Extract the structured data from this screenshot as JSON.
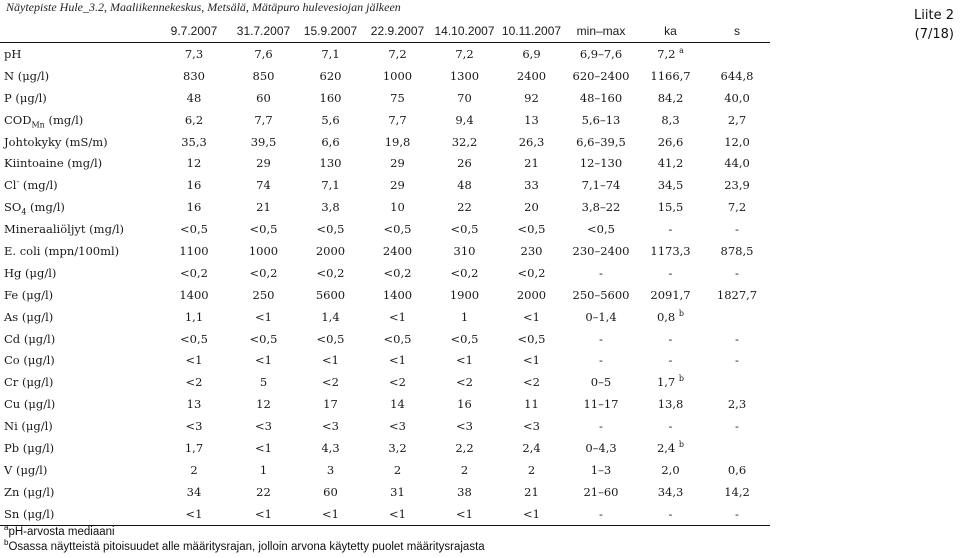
{
  "caption": "Näytepiste Hule_3.2, Maaliikennekeskus, Metsälä, Mätäpuro hulevesiojan jälkeen",
  "attachment": {
    "label": "Liite 2",
    "page": "(7/18)"
  },
  "columns": [
    "",
    "9.7.2007",
    "31.7.2007",
    "15.9.2007",
    "22.9.2007",
    "14.10.2007",
    "10.11.2007",
    "min–max",
    "ka",
    "s"
  ],
  "rows": [
    {
      "name": "pH",
      "sub": "",
      "sup": "",
      "unit": "",
      "values": [
        "7,3",
        "7,6",
        "7,1",
        "7,2",
        "7,2",
        "6,9",
        "6,9–7,6"
      ],
      "ka": "7,2",
      "ka_mark": "a",
      "s": ""
    },
    {
      "name": "N",
      "sub": "",
      "sup": "",
      "unit": " (μg/l)",
      "values": [
        "830",
        "850",
        "620",
        "1000",
        "1300",
        "2400",
        "620–2400"
      ],
      "ka": "1166,7",
      "ka_mark": "",
      "s": "644,8"
    },
    {
      "name": "P",
      "sub": "",
      "sup": "",
      "unit": " (μg/l)",
      "values": [
        "48",
        "60",
        "160",
        "75",
        "70",
        "92",
        "48–160"
      ],
      "ka": "84,2",
      "ka_mark": "",
      "s": "40,0"
    },
    {
      "name": "COD",
      "sub": "Mn",
      "sup": "",
      "unit": " (mg/l)",
      "values": [
        "6,2",
        "7,7",
        "5,6",
        "7,7",
        "9,4",
        "13",
        "5,6–13"
      ],
      "ka": "8,3",
      "ka_mark": "",
      "s": "2,7"
    },
    {
      "name": "Johtokyky",
      "sub": "",
      "sup": "",
      "unit": " (mS/m)",
      "values": [
        "35,3",
        "39,5",
        "6,6",
        "19,8",
        "32,2",
        "26,3",
        "6,6–39,5"
      ],
      "ka": "26,6",
      "ka_mark": "",
      "s": "12,0"
    },
    {
      "name": "Kiintoaine",
      "sub": "",
      "sup": "",
      "unit": " (mg/l)",
      "values": [
        "12",
        "29",
        "130",
        "29",
        "26",
        "21",
        "12–130"
      ],
      "ka": "41,2",
      "ka_mark": "",
      "s": "44,0"
    },
    {
      "name": "Cl",
      "sub": "",
      "sup": "-",
      "unit": " (mg/l)",
      "values": [
        "16",
        "74",
        "7,1",
        "29",
        "48",
        "33",
        "7,1–74"
      ],
      "ka": "34,5",
      "ka_mark": "",
      "s": "23,9"
    },
    {
      "name": "SO",
      "sub": "4",
      "sup": "",
      "unit": " (mg/l)",
      "values": [
        "16",
        "21",
        "3,8",
        "10",
        "22",
        "20",
        "3,8–22"
      ],
      "ka": "15,5",
      "ka_mark": "",
      "s": "7,2"
    },
    {
      "name": "Mineraaliöljyt",
      "sub": "",
      "sup": "",
      "unit": " (mg/l)",
      "values": [
        "<0,5",
        "<0,5",
        "<0,5",
        "<0,5",
        "<0,5",
        "<0,5",
        "<0,5"
      ],
      "ka": "-",
      "ka_mark": "",
      "s": "-"
    },
    {
      "name": "E. coli",
      "sub": "",
      "sup": "",
      "unit": " (mpn/100ml)",
      "values": [
        "1100",
        "1000",
        "2000",
        "2400",
        "310",
        "230",
        "230–2400"
      ],
      "ka": "1173,3",
      "ka_mark": "",
      "s": "878,5"
    },
    {
      "name": "Hg",
      "sub": "",
      "sup": "",
      "unit": " (μg/l)",
      "values": [
        "<0,2",
        "<0,2",
        "<0,2",
        "<0,2",
        "<0,2",
        "<0,2",
        "-"
      ],
      "ka": "-",
      "ka_mark": "",
      "s": "-"
    },
    {
      "name": "Fe",
      "sub": "",
      "sup": "",
      "unit": " (μg/l)",
      "values": [
        "1400",
        "250",
        "5600",
        "1400",
        "1900",
        "2000",
        "250–5600"
      ],
      "ka": "2091,7",
      "ka_mark": "",
      "s": "1827,7"
    },
    {
      "name": "As",
      "sub": "",
      "sup": "",
      "unit": " (μg/l)",
      "values": [
        "1,1",
        "<1",
        "1,4",
        "<1",
        "1",
        "<1",
        "0–1,4"
      ],
      "ka": "0,8",
      "ka_mark": "b",
      "s": ""
    },
    {
      "name": "Cd",
      "sub": "",
      "sup": "",
      "unit": " (μg/l)",
      "values": [
        "<0,5",
        "<0,5",
        "<0,5",
        "<0,5",
        "<0,5",
        "<0,5",
        "-"
      ],
      "ka": "-",
      "ka_mark": "",
      "s": "-"
    },
    {
      "name": "Co",
      "sub": "",
      "sup": "",
      "unit": " (μg/l)",
      "values": [
        "<1",
        "<1",
        "<1",
        "<1",
        "<1",
        "<1",
        "-"
      ],
      "ka": "-",
      "ka_mark": "",
      "s": "-"
    },
    {
      "name": "Cr",
      "sub": "",
      "sup": "",
      "unit": " (μg/l)",
      "values": [
        "<2",
        "5",
        "<2",
        "<2",
        "<2",
        "<2",
        "0–5"
      ],
      "ka": "1,7",
      "ka_mark": "b",
      "s": ""
    },
    {
      "name": "Cu",
      "sub": "",
      "sup": "",
      "unit": " (μg/l)",
      "values": [
        "13",
        "12",
        "17",
        "14",
        "16",
        "11",
        "11–17"
      ],
      "ka": "13,8",
      "ka_mark": "",
      "s": "2,3"
    },
    {
      "name": "Ni",
      "sub": "",
      "sup": "",
      "unit": " (μg/l)",
      "values": [
        "<3",
        "<3",
        "<3",
        "<3",
        "<3",
        "<3",
        "-"
      ],
      "ka": "-",
      "ka_mark": "",
      "s": "-"
    },
    {
      "name": "Pb",
      "sub": "",
      "sup": "",
      "unit": " (μg/l)",
      "values": [
        "1,7",
        "<1",
        "4,3",
        "3,2",
        "2,2",
        "2,4",
        "0–4,3"
      ],
      "ka": "2,4",
      "ka_mark": "b",
      "s": ""
    },
    {
      "name": "V",
      "sub": "",
      "sup": "",
      "unit": " (μg/l)",
      "values": [
        "2",
        "1",
        "3",
        "2",
        "2",
        "2",
        "1–3"
      ],
      "ka": "2,0",
      "ka_mark": "",
      "s": "0,6"
    },
    {
      "name": "Zn",
      "sub": "",
      "sup": "",
      "unit": " (μg/l)",
      "values": [
        "34",
        "22",
        "60",
        "31",
        "38",
        "21",
        "21–60"
      ],
      "ka": "34,3",
      "ka_mark": "",
      "s": "14,2"
    },
    {
      "name": "Sn",
      "sub": "",
      "sup": "",
      "unit": " (μg/l)",
      "values": [
        "<1",
        "<1",
        "<1",
        "<1",
        "<1",
        "<1",
        "-"
      ],
      "ka": "-",
      "ka_mark": "",
      "s": "-"
    }
  ],
  "footnotes": [
    {
      "mark": "a",
      "text": "pH-arvosta mediaani"
    },
    {
      "mark": "b",
      "text": "Osassa näytteistä pitoisuudet alle määritysrajan, jolloin arvona käytetty puolet määritysrajasta"
    }
  ]
}
